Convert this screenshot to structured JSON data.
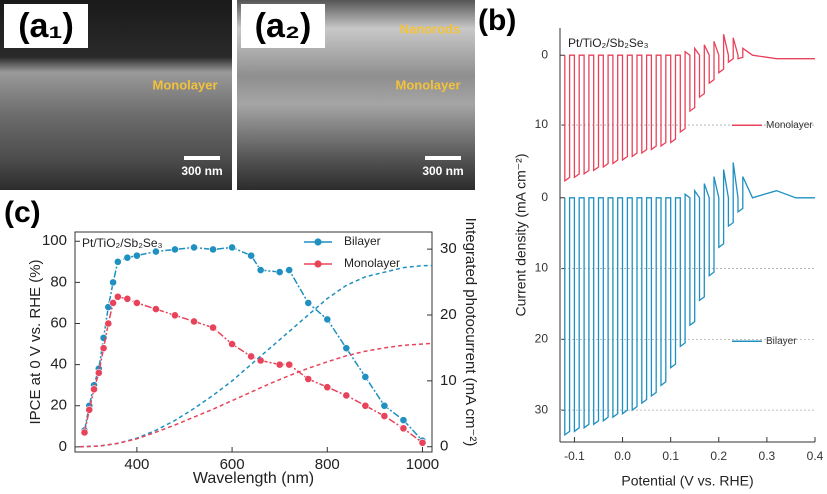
{
  "panels": {
    "a1": {
      "label": "(a₁)",
      "annotation": "Monolayer",
      "scale_bar": "300 nm"
    },
    "a2": {
      "label": "(a₂)",
      "annotation_top": "Nanorods",
      "annotation": "Monolayer",
      "scale_bar": "300 nm"
    },
    "b": {
      "label": "(b)"
    },
    "c": {
      "label": "(c)"
    }
  },
  "chart_data": [
    {
      "type": "line",
      "inset_text": "Pt/TiO₂/Sb₂Se₃",
      "x_label": "Potential (V vs. RHE)",
      "y_label": "Current density (mA cm⁻²)",
      "xlim": [
        -0.13,
        0.4
      ],
      "xticks": [
        -0.1,
        {
          "value": 0,
          "label": "0.0"
        },
        0.1,
        0.2,
        0.3,
        0.4
      ],
      "y_inverted": true,
      "grid": true,
      "x": [
        -0.12,
        -0.12,
        -0.11,
        -0.11,
        -0.1,
        -0.1,
        -0.09,
        -0.09,
        -0.08,
        -0.08,
        -0.07,
        -0.07,
        -0.06,
        -0.06,
        -0.05,
        -0.05,
        -0.04,
        -0.04,
        -0.03,
        -0.03,
        -0.02,
        -0.02,
        -0.01,
        -0.01,
        0,
        0,
        0.01,
        0.01,
        0.02,
        0.02,
        0.03,
        0.03,
        0.04,
        0.04,
        0.05,
        0.05,
        0.06,
        0.06,
        0.07,
        0.07,
        0.08,
        0.08,
        0.09,
        0.09,
        0.1,
        0.1,
        0.11,
        0.11,
        0.12,
        0.12,
        0.13,
        0.13,
        0.14,
        0.14,
        0.15,
        0.15,
        0.16,
        0.16,
        0.17,
        0.17,
        0.18,
        0.18,
        0.19,
        0.19,
        0.2,
        0.2,
        0.21,
        0.21,
        0.22,
        0.22,
        0.23,
        0.23,
        0.24,
        0.24,
        0.25,
        0.25,
        0.27,
        0.32,
        0.36,
        0.4
      ],
      "series": [
        {
          "name": "Monolayer",
          "color": "#e8435a",
          "ylim": [
            -3.9,
            19.3
          ],
          "yticks": [
            0,
            10
          ],
          "values": [
            0,
            18,
            17.5,
            0,
            0,
            17.5,
            17,
            0,
            0,
            17,
            16.5,
            0,
            0,
            16.5,
            16,
            0,
            0,
            16,
            15.5,
            0,
            0,
            15.5,
            15,
            0,
            0,
            15,
            14.5,
            0,
            0,
            14.5,
            14,
            0,
            0,
            14,
            13.5,
            0,
            0,
            13.5,
            13,
            0,
            0,
            13,
            12.5,
            0,
            0,
            12.5,
            12,
            0,
            0,
            11,
            10.5,
            -0.5,
            0,
            8,
            7.5,
            -1,
            0,
            6,
            5.5,
            -1.5,
            0,
            4,
            3.5,
            -2,
            0,
            2.5,
            2,
            -3,
            0,
            1,
            0.5,
            -2.5,
            0,
            0.5,
            0.3,
            -1,
            0,
            0.5,
            0.5,
            0.5
          ]
        },
        {
          "name": "Bilayer",
          "color": "#1f90c0",
          "ylim": [
            -1.1,
            34.5
          ],
          "yticks": [
            0,
            10,
            20,
            30
          ],
          "values": [
            0,
            33.5,
            33,
            0,
            0,
            33,
            32.5,
            0,
            0,
            32.5,
            32,
            0,
            0,
            32,
            31.5,
            0,
            0,
            31.5,
            31,
            0,
            0,
            31,
            30.5,
            0,
            0,
            30.5,
            30,
            0,
            0,
            30,
            29.5,
            0,
            0,
            29,
            28.5,
            0,
            0,
            28,
            27.5,
            0,
            0,
            26.5,
            26,
            0,
            0,
            24,
            23.5,
            0,
            0,
            21,
            20.5,
            -0.5,
            0,
            18,
            17.5,
            -1,
            0,
            14.5,
            14,
            -2,
            0,
            11,
            10.5,
            -3,
            0,
            7,
            6.5,
            -4,
            0,
            4,
            3.5,
            -5,
            0,
            2,
            1.5,
            -3,
            0,
            -1,
            0,
            0
          ]
        }
      ]
    },
    {
      "type": "line",
      "inset_text": "Pt/TiO₂/Sb₂Se₃",
      "x_label": "Wavelength (nm)",
      "y_label": "IPCE at 0 V vs. RHE (%)",
      "y2_label": "Integrated photocurrent (mA cm⁻²)",
      "xlim": [
        270,
        1020
      ],
      "xticks": [
        400,
        600,
        800,
        1000
      ],
      "ylim": [
        -2.5,
        104.5
      ],
      "yticks": [
        0,
        20,
        40,
        60,
        80,
        100
      ],
      "y2lim": [
        -0.8,
        32.6
      ],
      "y2ticks": [
        0,
        10,
        20,
        30
      ],
      "legend": "upper right",
      "series": [
        {
          "name": "Bilayer",
          "color": "#1f90c0",
          "markers": true,
          "x": [
            290,
            300,
            310,
            320,
            330,
            340,
            350,
            360,
            380,
            400,
            440,
            480,
            520,
            560,
            600,
            640,
            660,
            700,
            720,
            760,
            800,
            840,
            880,
            920,
            960,
            1000
          ],
          "values": [
            8,
            20,
            30,
            38,
            53,
            68,
            80,
            90,
            92,
            93,
            95,
            96,
            97,
            96,
            97,
            93,
            86,
            85,
            86,
            70,
            62,
            48,
            34,
            20,
            13,
            3
          ]
        },
        {
          "name": "Monolayer",
          "color": "#e8435a",
          "markers": true,
          "x": [
            290,
            300,
            310,
            320,
            330,
            340,
            350,
            360,
            380,
            400,
            440,
            480,
            520,
            560,
            600,
            640,
            660,
            700,
            720,
            760,
            800,
            840,
            880,
            920,
            960,
            1000
          ],
          "values": [
            7,
            18,
            28,
            36,
            48,
            60,
            70,
            73,
            72,
            70,
            67,
            64,
            61,
            58,
            50,
            44,
            42,
            40,
            40,
            33,
            29,
            25,
            20,
            15,
            9,
            2
          ]
        },
        {
          "color": "#1f90c0",
          "axis": "y2",
          "style": "dashed",
          "x": [
            280,
            320,
            360,
            400,
            440,
            480,
            520,
            560,
            600,
            640,
            680,
            720,
            760,
            800,
            840,
            880,
            920,
            960,
            1000,
            1020
          ],
          "values": [
            0,
            0.1,
            0.5,
            1.3,
            2.5,
            4,
            5.8,
            7.8,
            10,
            12.5,
            15,
            17.5,
            20,
            22.5,
            24.5,
            25.8,
            26.5,
            27.2,
            27.5,
            27.5
          ]
        },
        {
          "color": "#e8435a",
          "axis": "y2",
          "style": "dashed",
          "x": [
            280,
            320,
            360,
            400,
            440,
            480,
            520,
            560,
            600,
            640,
            680,
            720,
            760,
            800,
            840,
            880,
            920,
            960,
            1000,
            1020
          ],
          "values": [
            0,
            0.1,
            0.5,
            1.2,
            2.2,
            3.3,
            4.5,
            5.7,
            7,
            8.3,
            9.6,
            10.8,
            11.9,
            12.9,
            13.8,
            14.5,
            15,
            15.4,
            15.6,
            15.7
          ]
        }
      ]
    }
  ]
}
